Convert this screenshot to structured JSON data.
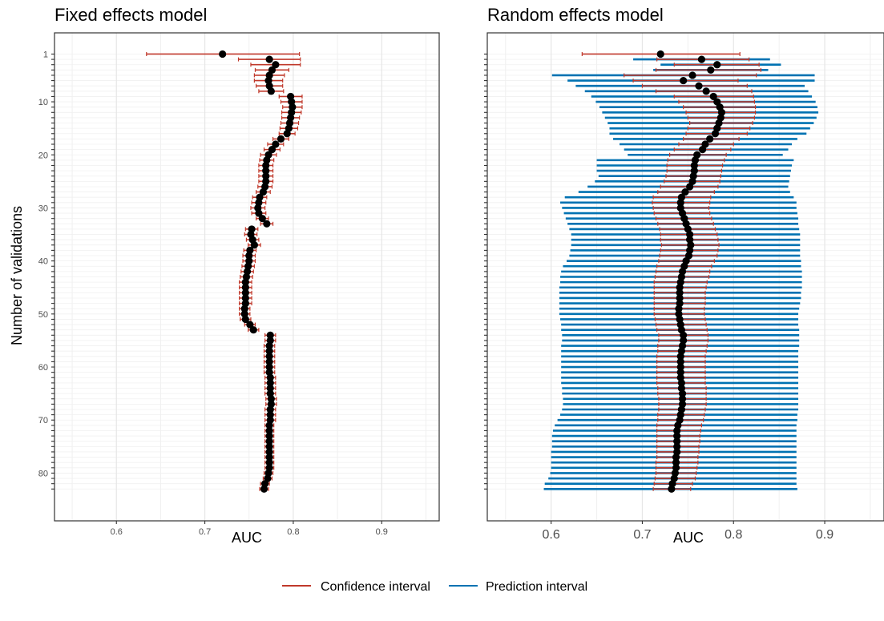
{
  "legend": {
    "items": [
      {
        "label": "Confidence interval",
        "color": "#C0392B"
      },
      {
        "label": "Prediction interval",
        "color": "#0072B2"
      }
    ]
  },
  "colors": {
    "ci": "#C0392B",
    "pi": "#0072B2",
    "point": "#000000",
    "panel_border": "#333333",
    "grid_major": "#E6E6E6",
    "grid_minor": "#F0F0F0",
    "axis_text": "#4D4D4D"
  },
  "chart_data": [
    {
      "type": "forest",
      "title": "Fixed effects model",
      "xlabel": "AUC",
      "ylabel": "Number of validations",
      "xlim": [
        0.53,
        0.965
      ],
      "ylim": [
        -3,
        89
      ],
      "x_ticks": [
        "0.6",
        "0.7",
        "0.8",
        "0.9"
      ],
      "y_ticks": [
        "1",
        "10",
        "20",
        "30",
        "40",
        "50",
        "60",
        "70",
        "80"
      ],
      "series": {
        "n": [
          1,
          2,
          3,
          4,
          5,
          6,
          7,
          8,
          9,
          10,
          11,
          12,
          13,
          14,
          15,
          16,
          17,
          18,
          19,
          20,
          21,
          22,
          23,
          24,
          25,
          26,
          27,
          28,
          29,
          30,
          31,
          32,
          33,
          34,
          35,
          36,
          37,
          38,
          39,
          40,
          41,
          42,
          43,
          44,
          45,
          46,
          47,
          48,
          49,
          50,
          51,
          52,
          53,
          54,
          55,
          56,
          57,
          58,
          59,
          60,
          61,
          62,
          63,
          64,
          65,
          66,
          67,
          68,
          69,
          70,
          71,
          72,
          73,
          74,
          75,
          76,
          77,
          78,
          79,
          80,
          81,
          82,
          83
        ],
        "auc": [
          0.72,
          0.773,
          0.78,
          0.776,
          0.773,
          0.772,
          0.773,
          0.775,
          0.797,
          0.798,
          0.799,
          0.798,
          0.797,
          0.796,
          0.795,
          0.793,
          0.786,
          0.78,
          0.776,
          0.772,
          0.77,
          0.769,
          0.769,
          0.769,
          0.769,
          0.768,
          0.766,
          0.762,
          0.761,
          0.76,
          0.761,
          0.765,
          0.77,
          0.753,
          0.752,
          0.754,
          0.756,
          0.751,
          0.75,
          0.75,
          0.749,
          0.748,
          0.747,
          0.746,
          0.746,
          0.746,
          0.746,
          0.746,
          0.745,
          0.745,
          0.746,
          0.751,
          0.755,
          0.774,
          0.774,
          0.773,
          0.773,
          0.773,
          0.773,
          0.773,
          0.773,
          0.774,
          0.774,
          0.774,
          0.774,
          0.775,
          0.775,
          0.774,
          0.774,
          0.774,
          0.773,
          0.773,
          0.773,
          0.773,
          0.773,
          0.773,
          0.773,
          0.773,
          0.773,
          0.772,
          0.771,
          0.768,
          0.767
        ],
        "ci_low": [
          0.634,
          0.738,
          0.752,
          0.757,
          0.756,
          0.756,
          0.758,
          0.761,
          0.784,
          0.786,
          0.788,
          0.787,
          0.787,
          0.786,
          0.785,
          0.784,
          0.777,
          0.771,
          0.767,
          0.763,
          0.762,
          0.761,
          0.761,
          0.761,
          0.761,
          0.76,
          0.758,
          0.754,
          0.753,
          0.752,
          0.753,
          0.758,
          0.763,
          0.746,
          0.745,
          0.747,
          0.749,
          0.744,
          0.743,
          0.743,
          0.742,
          0.741,
          0.74,
          0.739,
          0.739,
          0.739,
          0.739,
          0.739,
          0.739,
          0.739,
          0.74,
          0.745,
          0.749,
          0.768,
          0.768,
          0.767,
          0.767,
          0.767,
          0.767,
          0.767,
          0.767,
          0.768,
          0.768,
          0.768,
          0.768,
          0.769,
          0.769,
          0.768,
          0.768,
          0.768,
          0.768,
          0.768,
          0.768,
          0.768,
          0.768,
          0.768,
          0.768,
          0.768,
          0.768,
          0.767,
          0.766,
          0.763,
          0.762
        ],
        "ci_high": [
          0.807,
          0.808,
          0.808,
          0.795,
          0.79,
          0.788,
          0.788,
          0.789,
          0.81,
          0.81,
          0.81,
          0.809,
          0.807,
          0.806,
          0.805,
          0.802,
          0.795,
          0.789,
          0.785,
          0.781,
          0.778,
          0.777,
          0.777,
          0.777,
          0.777,
          0.776,
          0.774,
          0.77,
          0.769,
          0.768,
          0.769,
          0.772,
          0.777,
          0.76,
          0.759,
          0.761,
          0.763,
          0.758,
          0.757,
          0.757,
          0.756,
          0.755,
          0.754,
          0.753,
          0.753,
          0.753,
          0.753,
          0.753,
          0.751,
          0.751,
          0.752,
          0.757,
          0.761,
          0.78,
          0.78,
          0.779,
          0.779,
          0.779,
          0.779,
          0.779,
          0.779,
          0.78,
          0.78,
          0.78,
          0.78,
          0.781,
          0.781,
          0.78,
          0.78,
          0.78,
          0.778,
          0.778,
          0.778,
          0.778,
          0.778,
          0.778,
          0.778,
          0.778,
          0.778,
          0.777,
          0.776,
          0.773,
          0.772
        ]
      }
    },
    {
      "type": "forest",
      "title": "Random effects model",
      "xlabel": "AUC",
      "ylabel": "",
      "xlim": [
        0.53,
        0.965
      ],
      "ylim": [
        -3,
        89
      ],
      "x_ticks": [
        "0.6",
        "0.7",
        "0.8",
        "0.9"
      ],
      "y_ticks": [],
      "series": {
        "n": [
          1,
          2,
          3,
          4,
          5,
          6,
          7,
          8,
          9,
          10,
          11,
          12,
          13,
          14,
          15,
          16,
          17,
          18,
          19,
          20,
          21,
          22,
          23,
          24,
          25,
          26,
          27,
          28,
          29,
          30,
          31,
          32,
          33,
          34,
          35,
          36,
          37,
          38,
          39,
          40,
          41,
          42,
          43,
          44,
          45,
          46,
          47,
          48,
          49,
          50,
          51,
          52,
          53,
          54,
          55,
          56,
          57,
          58,
          59,
          60,
          61,
          62,
          63,
          64,
          65,
          66,
          67,
          68,
          69,
          70,
          71,
          72,
          73,
          74,
          75,
          76,
          77,
          78,
          79,
          80,
          81,
          82,
          83
        ],
        "auc": [
          0.72,
          0.765,
          0.782,
          0.775,
          0.755,
          0.745,
          0.762,
          0.77,
          0.778,
          0.782,
          0.785,
          0.787,
          0.786,
          0.784,
          0.782,
          0.78,
          0.774,
          0.769,
          0.766,
          0.76,
          0.758,
          0.757,
          0.757,
          0.756,
          0.755,
          0.752,
          0.747,
          0.743,
          0.742,
          0.742,
          0.744,
          0.746,
          0.748,
          0.75,
          0.752,
          0.752,
          0.753,
          0.752,
          0.751,
          0.748,
          0.746,
          0.744,
          0.743,
          0.742,
          0.741,
          0.741,
          0.741,
          0.741,
          0.74,
          0.74,
          0.741,
          0.742,
          0.743,
          0.745,
          0.745,
          0.744,
          0.743,
          0.742,
          0.742,
          0.742,
          0.742,
          0.742,
          0.743,
          0.743,
          0.744,
          0.744,
          0.744,
          0.743,
          0.742,
          0.741,
          0.739,
          0.738,
          0.738,
          0.738,
          0.738,
          0.738,
          0.737,
          0.737,
          0.737,
          0.736,
          0.735,
          0.733,
          0.732
        ],
        "ci_low": [
          0.634,
          0.716,
          0.735,
          0.715,
          0.68,
          0.69,
          0.7,
          0.715,
          0.735,
          0.74,
          0.745,
          0.748,
          0.75,
          0.752,
          0.75,
          0.748,
          0.745,
          0.74,
          0.735,
          0.73,
          0.728,
          0.727,
          0.727,
          0.726,
          0.724,
          0.72,
          0.717,
          0.712,
          0.711,
          0.712,
          0.713,
          0.715,
          0.717,
          0.719,
          0.72,
          0.72,
          0.721,
          0.72,
          0.719,
          0.718,
          0.716,
          0.715,
          0.714,
          0.713,
          0.713,
          0.713,
          0.713,
          0.713,
          0.713,
          0.713,
          0.714,
          0.715,
          0.716,
          0.718,
          0.718,
          0.717,
          0.717,
          0.716,
          0.716,
          0.716,
          0.716,
          0.716,
          0.716,
          0.717,
          0.717,
          0.718,
          0.718,
          0.718,
          0.717,
          0.717,
          0.716,
          0.716,
          0.716,
          0.716,
          0.716,
          0.716,
          0.716,
          0.715,
          0.715,
          0.715,
          0.714,
          0.713,
          0.712
        ],
        "ci_high": [
          0.807,
          0.817,
          0.828,
          0.83,
          0.825,
          0.805,
          0.815,
          0.82,
          0.822,
          0.823,
          0.824,
          0.824,
          0.823,
          0.821,
          0.818,
          0.815,
          0.806,
          0.8,
          0.797,
          0.792,
          0.79,
          0.788,
          0.787,
          0.786,
          0.785,
          0.783,
          0.779,
          0.775,
          0.774,
          0.773,
          0.774,
          0.776,
          0.778,
          0.78,
          0.782,
          0.783,
          0.784,
          0.783,
          0.782,
          0.779,
          0.776,
          0.774,
          0.773,
          0.771,
          0.77,
          0.769,
          0.769,
          0.769,
          0.768,
          0.768,
          0.769,
          0.77,
          0.771,
          0.772,
          0.772,
          0.771,
          0.77,
          0.769,
          0.769,
          0.769,
          0.769,
          0.769,
          0.769,
          0.77,
          0.77,
          0.77,
          0.77,
          0.769,
          0.768,
          0.767,
          0.765,
          0.764,
          0.763,
          0.763,
          0.762,
          0.762,
          0.761,
          0.761,
          0.76,
          0.759,
          0.758,
          0.755,
          0.753
        ],
        "pi_low": [
          null,
          0.69,
          0.72,
          0.712,
          0.601,
          0.618,
          0.627,
          0.637,
          0.644,
          0.649,
          0.653,
          0.656,
          0.659,
          0.662,
          0.664,
          0.664,
          0.668,
          0.675,
          0.68,
          0.684,
          0.65,
          0.65,
          0.65,
          0.652,
          0.648,
          0.64,
          0.63,
          0.615,
          0.61,
          0.612,
          0.614,
          0.616,
          0.618,
          0.62,
          0.622,
          0.622,
          0.622,
          0.621,
          0.62,
          0.617,
          0.613,
          0.611,
          0.61,
          0.61,
          0.609,
          0.609,
          0.609,
          0.609,
          0.609,
          0.609,
          0.61,
          0.611,
          0.611,
          0.612,
          0.612,
          0.611,
          0.611,
          0.611,
          0.611,
          0.611,
          0.611,
          0.611,
          0.611,
          0.612,
          0.612,
          0.613,
          0.613,
          0.612,
          0.61,
          0.607,
          0.604,
          0.602,
          0.601,
          0.601,
          0.601,
          0.6,
          0.6,
          0.6,
          0.6,
          0.599,
          0.597,
          0.593,
          0.592
        ],
        "pi_high": [
          null,
          0.84,
          0.852,
          0.838,
          0.889,
          0.889,
          0.878,
          0.882,
          0.886,
          0.89,
          0.892,
          0.893,
          0.891,
          0.888,
          0.884,
          0.88,
          0.87,
          0.864,
          0.86,
          0.854,
          0.866,
          0.864,
          0.863,
          0.862,
          0.861,
          0.86,
          0.862,
          0.866,
          0.869,
          0.869,
          0.87,
          0.871,
          0.871,
          0.872,
          0.873,
          0.873,
          0.873,
          0.873,
          0.873,
          0.874,
          0.874,
          0.875,
          0.875,
          0.875,
          0.875,
          0.874,
          0.874,
          0.873,
          0.872,
          0.871,
          0.871,
          0.871,
          0.872,
          0.872,
          0.872,
          0.872,
          0.871,
          0.871,
          0.871,
          0.871,
          0.871,
          0.871,
          0.871,
          0.871,
          0.871,
          0.871,
          0.871,
          0.871,
          0.87,
          0.87,
          0.869,
          0.869,
          0.869,
          0.869,
          0.869,
          0.869,
          0.869,
          0.869,
          0.869,
          0.869,
          0.869,
          0.869,
          0.87
        ]
      }
    }
  ]
}
